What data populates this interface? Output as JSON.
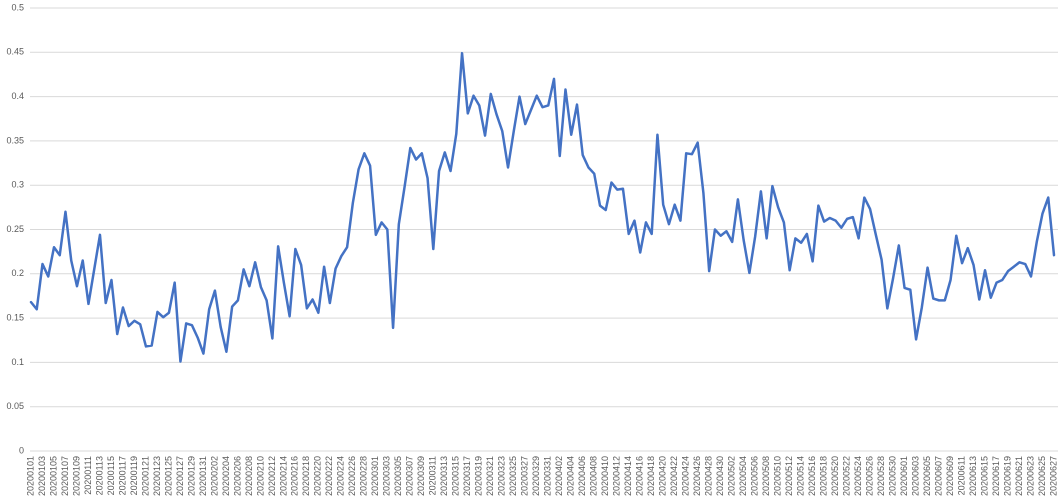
{
  "chart_data": {
    "type": "line",
    "categories": [
      "20200101",
      null,
      "20200103",
      null,
      "20200105",
      null,
      "20200107",
      null,
      "20200109",
      null,
      "20200111",
      null,
      "20200113",
      null,
      "20200115",
      null,
      "20200117",
      null,
      "20200119",
      null,
      "20200121",
      null,
      "20200123",
      null,
      "20200125",
      null,
      "20200127",
      null,
      "20200129",
      null,
      "20200131",
      null,
      "20200202",
      null,
      "20200204",
      null,
      "20200206",
      null,
      "20200208",
      null,
      "20200210",
      null,
      "20200212",
      null,
      "20200214",
      null,
      "20200216",
      null,
      "20200218",
      null,
      "20200220",
      null,
      "20200222",
      null,
      "20200224",
      null,
      "20200226",
      null,
      "20200228",
      null,
      "20200301",
      null,
      "20200303",
      null,
      "20200305",
      null,
      "20200307",
      null,
      "20200309",
      null,
      "20200311",
      null,
      "20200313",
      null,
      "20200315",
      null,
      "20200317",
      null,
      "20200319",
      null,
      "20200321",
      null,
      "20200323",
      null,
      "20200325",
      null,
      "20200327",
      null,
      "20200329",
      null,
      "20200331",
      null,
      "20200402",
      null,
      "20200404",
      null,
      "20200406",
      null,
      "20200408",
      null,
      "20200410",
      null,
      "20200412",
      null,
      "20200414",
      null,
      "20200416",
      null,
      "20200418",
      null,
      "20200420",
      null,
      "20200422",
      null,
      "20200424",
      null,
      "20200426",
      null,
      "20200428",
      null,
      "20200430",
      null,
      "20200502",
      null,
      "20200504",
      null,
      "20200506",
      null,
      "20200508",
      null,
      "20200510",
      null,
      "20200512",
      null,
      "20200514",
      null,
      "20200516",
      null,
      "20200518",
      null,
      "20200520",
      null,
      "20200522",
      null,
      "20200524",
      null,
      "20200526",
      null,
      "20200528",
      null,
      "20200530",
      null,
      "20200601",
      null,
      "20200603",
      null,
      "20200605",
      null,
      "20200607",
      null,
      "20200609",
      null,
      "20200611",
      null,
      "20200613",
      null,
      "20200615",
      null,
      "20200617",
      null,
      "20200619",
      null,
      "20200621",
      null,
      "20200623",
      null,
      "20200625",
      null,
      "20200627"
    ],
    "values": [
      0.168,
      0.16,
      0.211,
      0.197,
      0.23,
      0.221,
      0.27,
      0.215,
      0.186,
      0.215,
      0.166,
      0.205,
      0.244,
      0.167,
      0.193,
      0.132,
      0.162,
      0.141,
      0.147,
      0.143,
      0.118,
      0.119,
      0.157,
      0.151,
      0.156,
      0.19,
      0.101,
      0.144,
      0.142,
      0.128,
      0.11,
      0.16,
      0.181,
      0.14,
      0.112,
      0.163,
      0.17,
      0.205,
      0.186,
      0.213,
      0.185,
      0.17,
      0.127,
      0.231,
      0.19,
      0.152,
      0.228,
      0.21,
      0.161,
      0.171,
      0.156,
      0.208,
      0.167,
      0.206,
      0.22,
      0.23,
      0.28,
      0.318,
      0.336,
      0.322,
      0.244,
      0.258,
      0.25,
      0.139,
      0.256,
      0.298,
      0.342,
      0.329,
      0.336,
      0.308,
      0.228,
      0.316,
      0.337,
      0.316,
      0.358,
      0.449,
      0.381,
      0.401,
      0.39,
      0.356,
      0.403,
      0.38,
      0.361,
      0.32,
      0.361,
      0.4,
      0.369,
      0.385,
      0.401,
      0.388,
      0.39,
      0.42,
      0.333,
      0.408,
      0.357,
      0.391,
      0.334,
      0.32,
      0.313,
      0.277,
      0.272,
      0.303,
      0.295,
      0.296,
      0.245,
      0.26,
      0.224,
      0.258,
      0.245,
      0.357,
      0.278,
      0.256,
      0.278,
      0.26,
      0.336,
      0.335,
      0.348,
      0.291,
      0.203,
      0.25,
      0.243,
      0.248,
      0.236,
      0.284,
      0.238,
      0.201,
      0.242,
      0.293,
      0.24,
      0.299,
      0.275,
      0.258,
      0.204,
      0.24,
      0.235,
      0.245,
      0.214,
      0.277,
      0.259,
      0.263,
      0.26,
      0.252,
      0.262,
      0.264,
      0.24,
      0.286,
      0.273,
      0.244,
      0.216,
      0.161,
      0.195,
      0.232,
      0.184,
      0.182,
      0.126,
      0.162,
      0.207,
      0.172,
      0.17,
      0.17,
      0.193,
      0.243,
      0.212,
      0.229,
      0.21,
      0.171,
      0.204,
      0.173,
      0.19,
      0.193,
      0.203,
      0.208,
      0.213,
      0.211,
      0.197,
      0.236,
      0.268,
      0.286,
      0.221
    ],
    "color": "#4472c4",
    "ylim": [
      0,
      0.5
    ],
    "yticks": [
      0,
      0.05,
      0.1,
      0.15,
      0.2,
      0.25,
      0.3,
      0.35,
      0.4,
      0.45,
      0.5
    ],
    "grid": true
  }
}
